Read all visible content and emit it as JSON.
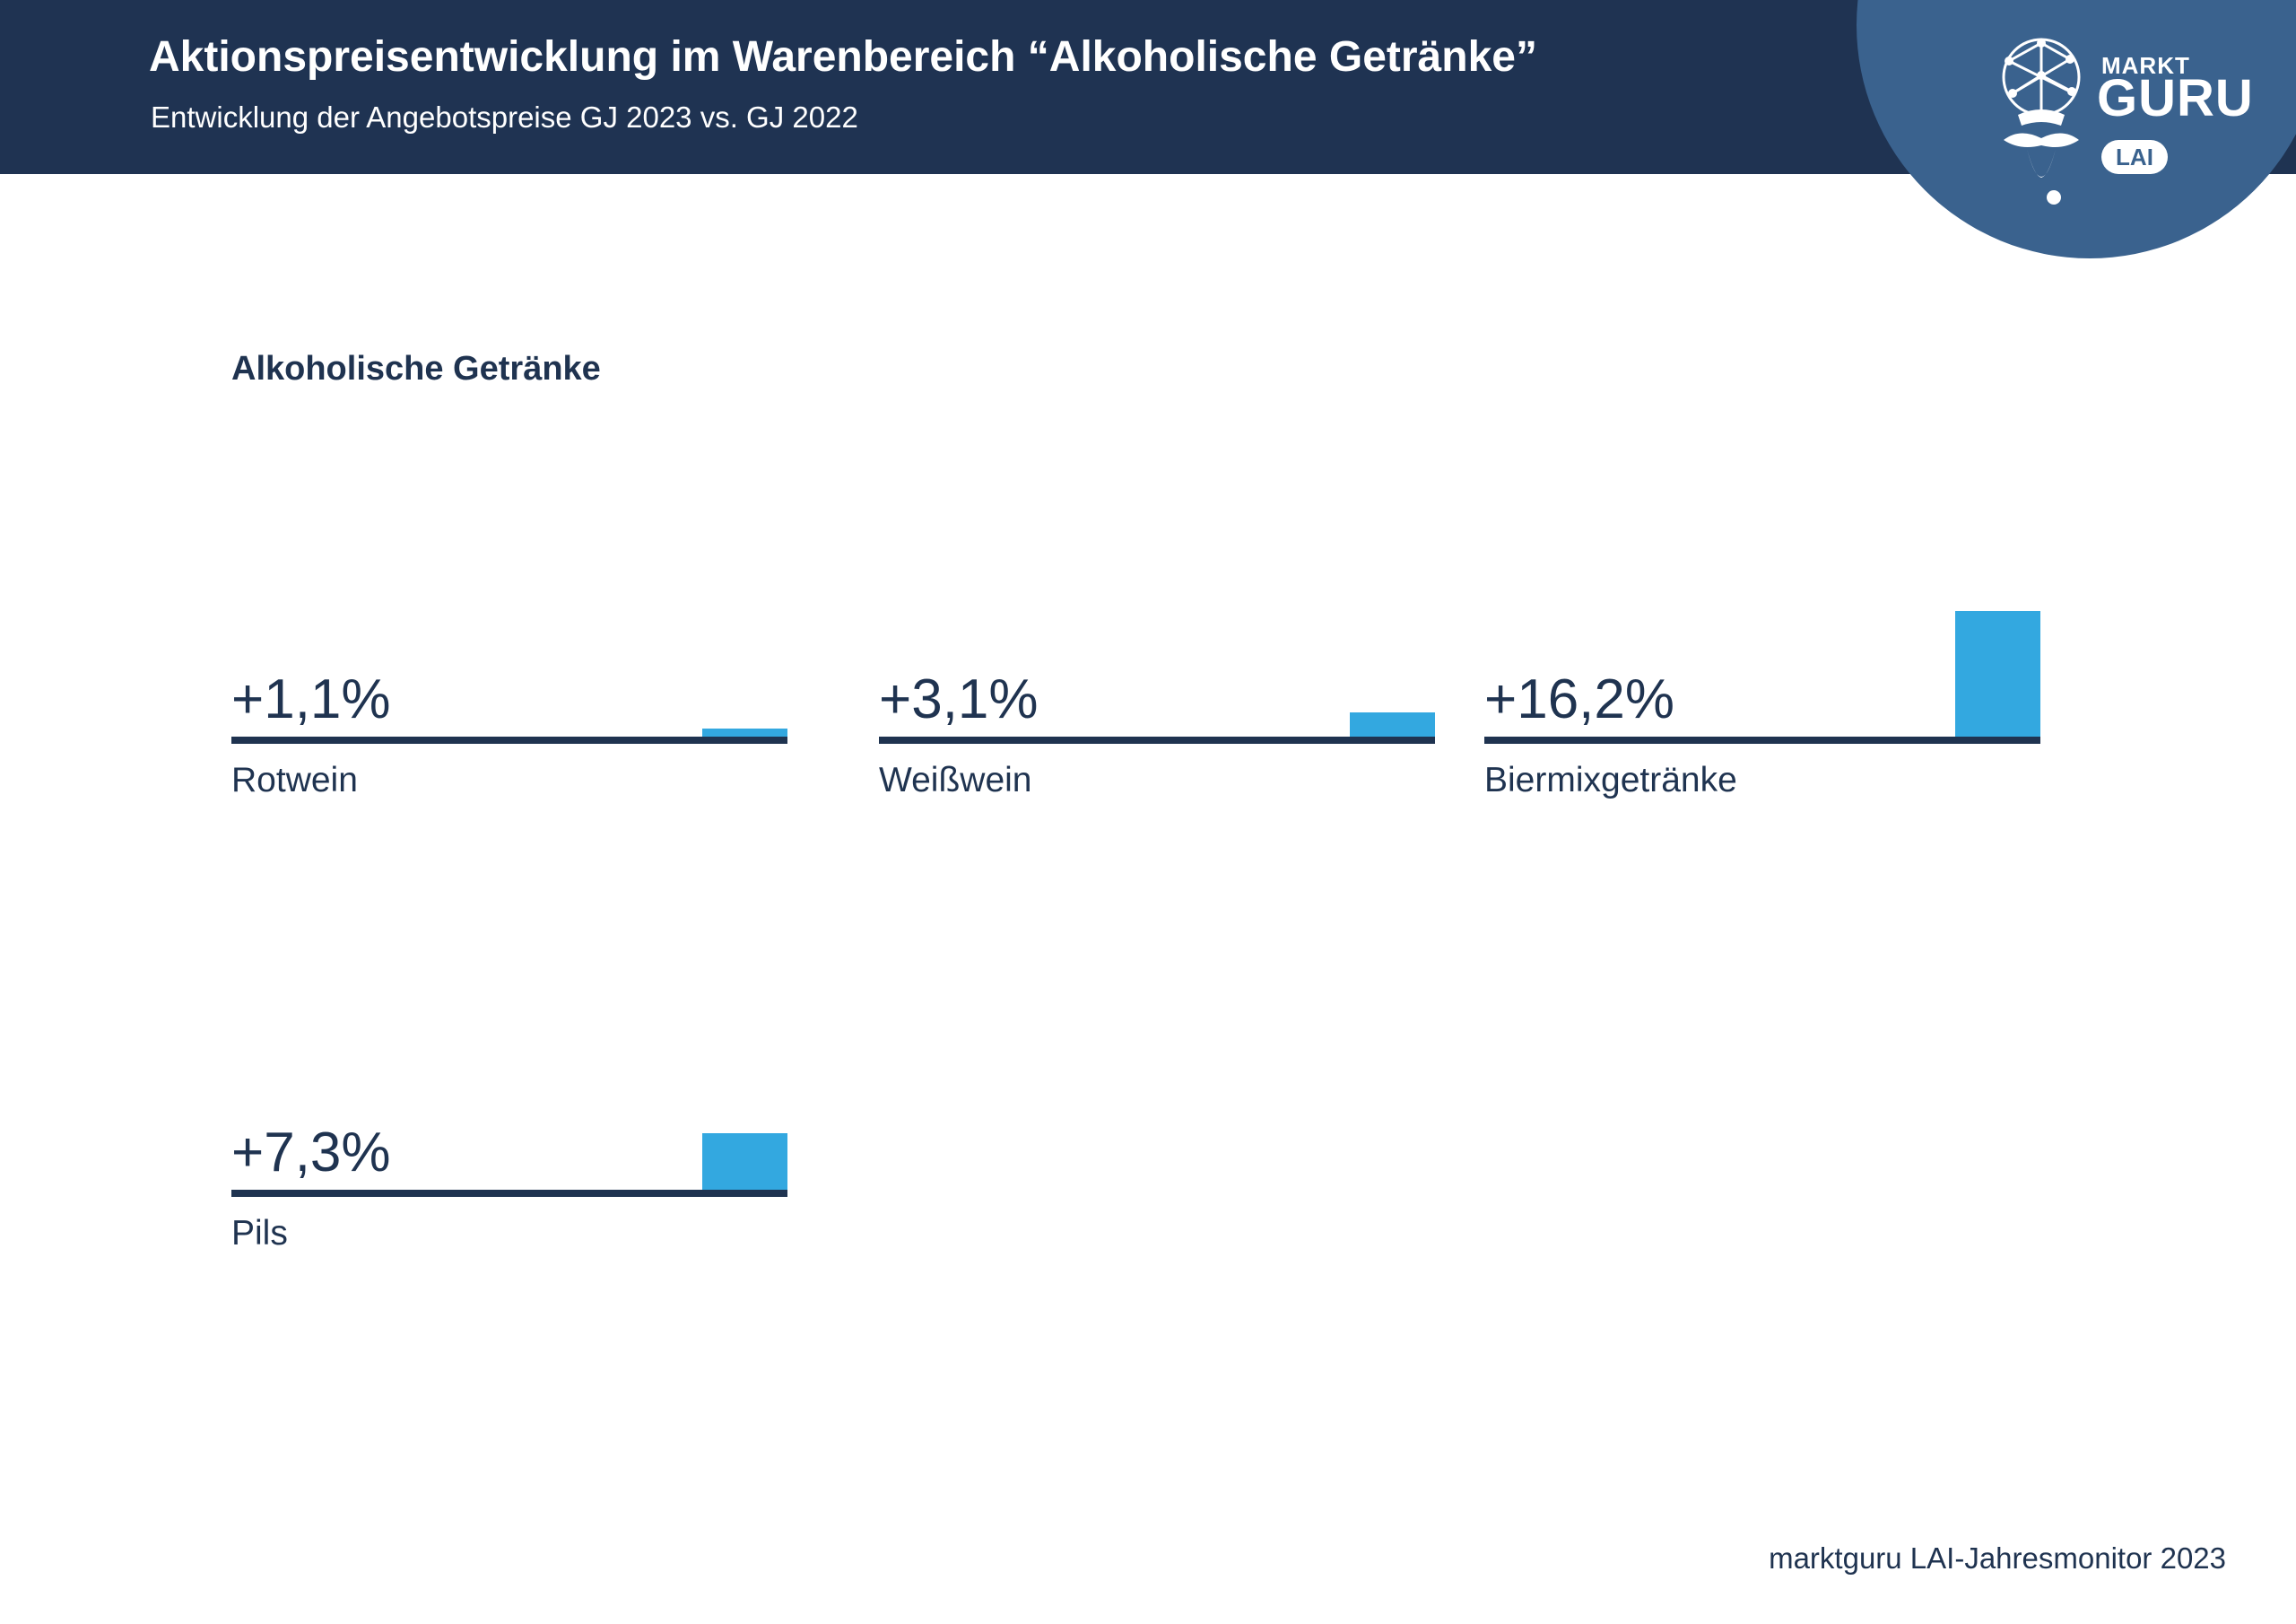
{
  "header": {
    "title": "Aktionspreisentwicklung im Warenbereich “Alkoholische Getränke”",
    "subtitle": "Entwicklung der Angebotspreise GJ 2023 vs. GJ 2022"
  },
  "logo": {
    "brand_top": "MARKT",
    "brand_main": "GURU",
    "badge": "LAI",
    "color": "#3a628e"
  },
  "chart_data": {
    "type": "bar",
    "title": "Alkoholische Getränke",
    "unit": "%",
    "categories": [
      "Rotwein",
      "Weißwein",
      "Biermixgetränke",
      "Pils"
    ],
    "values": [
      1.1,
      3.1,
      16.2,
      7.3
    ],
    "value_labels": [
      "+1,1%",
      "+3,1%",
      "+16,2%",
      "+7,3%"
    ],
    "bar_color": "#33a8e0",
    "baseline_color": "#1f3350"
  },
  "footer": {
    "source": "marktguru LAI-Jahresmonitor 2023"
  }
}
